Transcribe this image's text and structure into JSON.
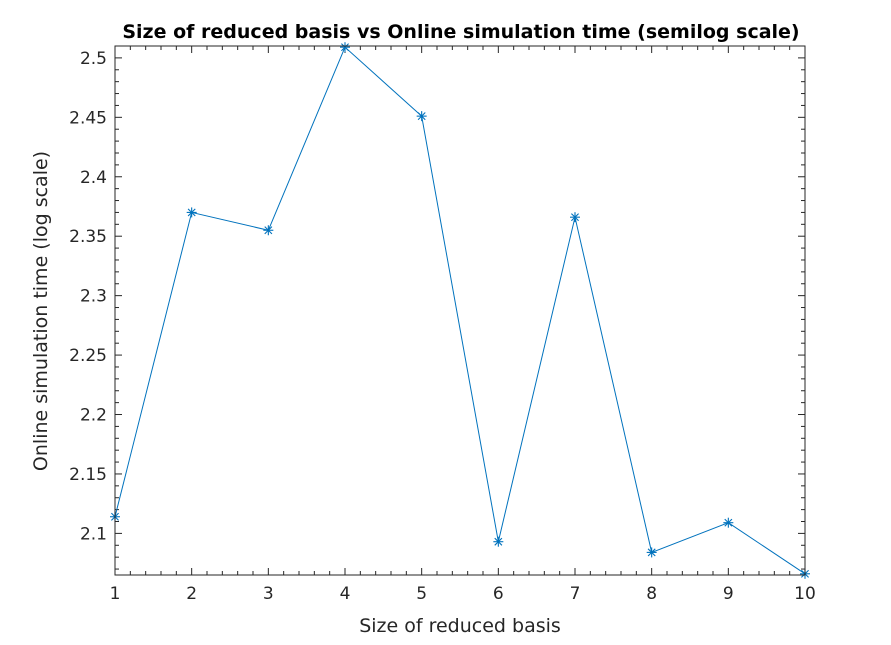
{
  "chart_data": {
    "type": "line",
    "title": "Size of reduced basis vs Online simulation time (semilog scale)",
    "xlabel": "Size of reduced basis",
    "ylabel": "Online simulation time (log scale)",
    "xlim": [
      1,
      10
    ],
    "ylim": [
      2.065,
      2.51
    ],
    "x_ticks": [
      1,
      2,
      3,
      4,
      5,
      6,
      7,
      8,
      9,
      10
    ],
    "y_ticks": [
      2.1,
      2.15,
      2.2,
      2.25,
      2.3,
      2.35,
      2.4,
      2.45,
      2.5
    ],
    "x_tick_labels": [
      "1",
      "2",
      "3",
      "4",
      "5",
      "6",
      "7",
      "8",
      "9",
      "10"
    ],
    "y_tick_labels": [
      "2.1",
      "2.15",
      "2.2",
      "2.25",
      "2.3",
      "2.35",
      "2.4",
      "2.45",
      "2.5"
    ],
    "grid": false,
    "series": [
      {
        "x": [
          1,
          2,
          3,
          4,
          5,
          6,
          7,
          8,
          9,
          10
        ],
        "values": [
          2.114,
          2.37,
          2.355,
          2.509,
          2.451,
          2.093,
          2.366,
          2.084,
          2.109,
          2.066
        ],
        "color": "#0072BD",
        "marker": "asterisk"
      }
    ]
  }
}
